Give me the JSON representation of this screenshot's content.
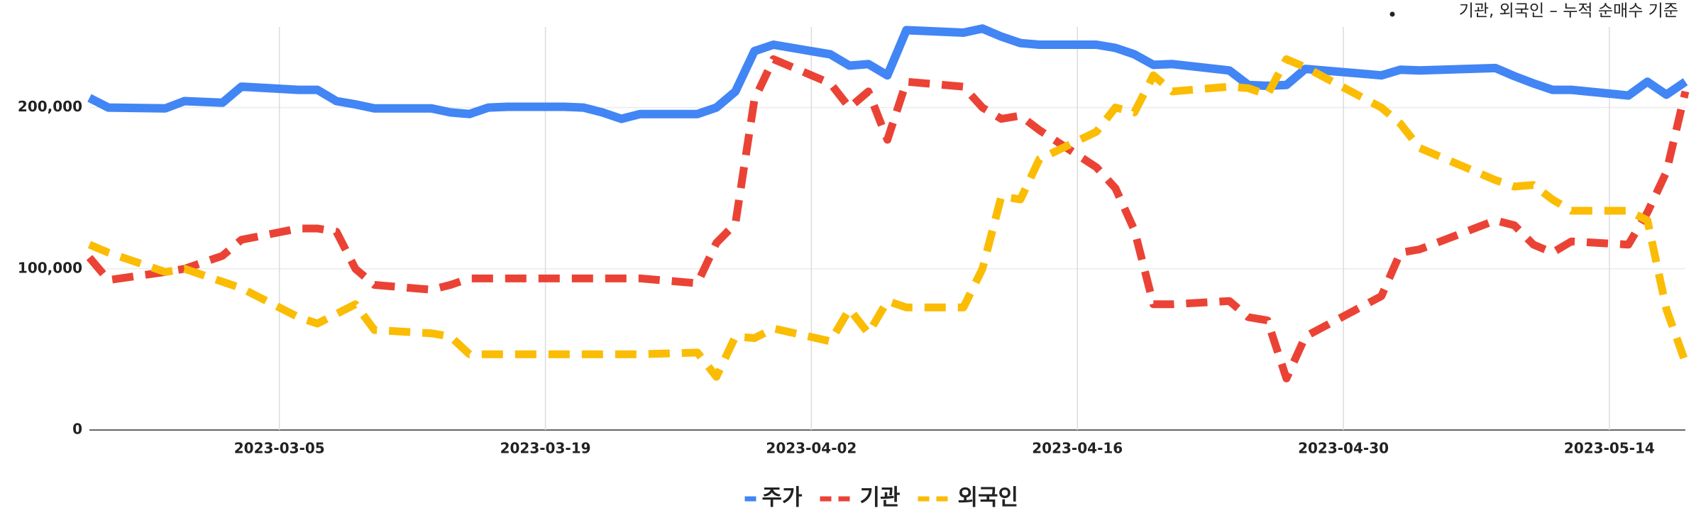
{
  "chart_data": {
    "type": "line",
    "note": "기관, 외국인 – 누적 순매수 기준",
    "x": [
      "2023-02-23",
      "2023-02-24",
      "2023-02-27",
      "2023-02-28",
      "2023-03-02",
      "2023-03-03",
      "2023-03-06",
      "2023-03-07",
      "2023-03-08",
      "2023-03-09",
      "2023-03-10",
      "2023-03-13",
      "2023-03-14",
      "2023-03-15",
      "2023-03-16",
      "2023-03-17",
      "2023-03-20",
      "2023-03-21",
      "2023-03-22",
      "2023-03-23",
      "2023-03-24",
      "2023-03-27",
      "2023-03-28",
      "2023-03-29",
      "2023-03-30",
      "2023-03-31",
      "2023-04-03",
      "2023-04-04",
      "2023-04-05",
      "2023-04-06",
      "2023-04-07",
      "2023-04-10",
      "2023-04-11",
      "2023-04-12",
      "2023-04-13",
      "2023-04-14",
      "2023-04-17",
      "2023-04-18",
      "2023-04-19",
      "2023-04-20",
      "2023-04-21",
      "2023-04-24",
      "2023-04-25",
      "2023-04-26",
      "2023-04-27",
      "2023-04-28",
      "2023-05-02",
      "2023-05-03",
      "2023-05-04",
      "2023-05-08",
      "2023-05-09",
      "2023-05-10",
      "2023-05-11",
      "2023-05-12",
      "2023-05-15",
      "2023-05-16",
      "2023-05-17",
      "2023-05-18"
    ],
    "series": [
      {
        "name": "주가",
        "color": "#4285f4",
        "dash": false,
        "values": [
          206000,
          200000,
          199500,
          204000,
          203000,
          213000,
          211000,
          211000,
          204000,
          202000,
          199500,
          199500,
          197000,
          196000,
          200000,
          200500,
          200500,
          200000,
          197000,
          193000,
          196000,
          196000,
          200000,
          210000,
          235000,
          239000,
          233000,
          226000,
          227000,
          220000,
          248000,
          246500,
          249000,
          244000,
          240000,
          239000,
          239000,
          237000,
          233000,
          226500,
          227000,
          223000,
          214000,
          213500,
          214000,
          224000,
          220000,
          223500,
          223000,
          224500,
          219500,
          215000,
          211000,
          211000,
          207500,
          216000,
          208000,
          216000
        ]
      },
      {
        "name": "기관",
        "color": "#ea4335",
        "dash": true,
        "values": [
          107000,
          93000,
          98000,
          100000,
          108000,
          118000,
          125000,
          125000,
          123000,
          100000,
          90000,
          87000,
          90000,
          94000,
          94000,
          94000,
          94000,
          94000,
          94000,
          94000,
          94000,
          91000,
          116000,
          128000,
          205000,
          230000,
          215000,
          200000,
          210000,
          180000,
          216000,
          213000,
          200000,
          193000,
          195000,
          186000,
          163000,
          150000,
          124000,
          78000,
          78000,
          80000,
          70000,
          68000,
          32000,
          58000,
          83000,
          110000,
          112000,
          130000,
          127000,
          115000,
          110000,
          117000,
          115000,
          135000,
          160000,
          210000
        ]
      },
      {
        "name": "외국인",
        "color": "#fbbc04",
        "dash": true,
        "values": [
          115000,
          110000,
          98000,
          100000,
          92000,
          88000,
          70000,
          66000,
          72000,
          78000,
          62000,
          60000,
          58000,
          47000,
          47000,
          47000,
          47000,
          47000,
          47000,
          47000,
          47000,
          48000,
          33000,
          58000,
          57000,
          63000,
          55000,
          75000,
          60000,
          80000,
          76000,
          76000,
          100000,
          145000,
          143000,
          168000,
          185000,
          200000,
          197000,
          220000,
          210000,
          213000,
          212000,
          208000,
          230000,
          225000,
          200000,
          190000,
          175000,
          155000,
          151000,
          152000,
          143000,
          136000,
          136000,
          130000,
          75000,
          42000
        ]
      }
    ],
    "xlim": [
      "2023-02-23",
      "2023-05-18"
    ],
    "xticks": [
      "2023-03-05",
      "2023-03-19",
      "2023-04-02",
      "2023-04-16",
      "2023-04-30",
      "2023-05-14"
    ],
    "ylim": [
      0,
      250000
    ],
    "yticks": [
      0,
      {
        "value": 100000,
        "label": "100,000"
      },
      {
        "value": 200000,
        "label": "200,000"
      }
    ],
    "grid": true,
    "legend": "bottom"
  }
}
